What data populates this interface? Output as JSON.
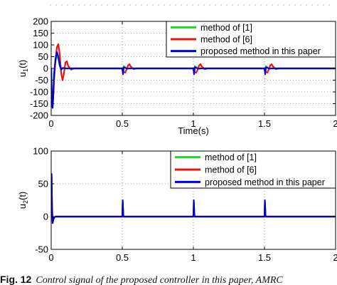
{
  "colors": {
    "green": "#00ee00",
    "red": "#ee1111",
    "blue": "#0000dd"
  },
  "chart_data": [
    {
      "type": "line",
      "ylabel": "u_1(t)",
      "xlabel": "Time(s)",
      "xlim": [
        0,
        2
      ],
      "ylim": [
        -200,
        200
      ],
      "xticks": [
        0,
        0.5,
        1,
        1.5,
        2
      ],
      "xtick_labels": [
        "0",
        "0.5",
        "1",
        "1.5",
        "2"
      ],
      "yticks": [
        -200,
        -150,
        -100,
        -50,
        0,
        50,
        100,
        150,
        200
      ],
      "ytick_labels": [
        "-200",
        "-150",
        "-100",
        "-50",
        "0",
        "50",
        "100",
        "150",
        "200"
      ],
      "grid": true,
      "legend_position": "top-right",
      "series": [
        {
          "name": "method of [1]",
          "color": "#00ee00",
          "x": [
            0,
            0.005,
            0.01,
            0.015,
            0.02,
            0.03,
            0.04,
            0.05,
            0.06,
            0.07,
            0.08,
            0.09,
            0.1,
            0.12,
            0.15,
            0.5,
            0.505,
            0.51,
            0.52,
            0.53,
            0.55,
            1.0,
            1.005,
            1.01,
            1.02,
            1.03,
            1.05,
            1.5,
            1.505,
            1.51,
            1.52,
            1.53,
            1.55,
            2.0
          ],
          "y": [
            0,
            -120,
            -150,
            -100,
            -20,
            30,
            55,
            40,
            10,
            -5,
            0,
            2,
            0,
            0,
            0,
            0,
            -22,
            10,
            5,
            -2,
            0,
            0,
            -22,
            10,
            5,
            -2,
            0,
            0,
            -22,
            10,
            5,
            -2,
            0,
            0
          ]
        },
        {
          "name": "method of [6]",
          "color": "#ee1111",
          "x": [
            0,
            0.005,
            0.01,
            0.015,
            0.02,
            0.03,
            0.04,
            0.05,
            0.06,
            0.07,
            0.08,
            0.09,
            0.1,
            0.11,
            0.12,
            0.14,
            0.16,
            0.5,
            0.51,
            0.52,
            0.53,
            0.54,
            0.55,
            0.56,
            0.58,
            0.6,
            1.0,
            1.01,
            1.02,
            1.03,
            1.04,
            1.05,
            1.06,
            1.08,
            1.1,
            1.5,
            1.51,
            1.52,
            1.53,
            1.54,
            1.55,
            1.56,
            1.58,
            1.6,
            2.0
          ],
          "y": [
            0,
            -140,
            -165,
            -120,
            -50,
            30,
            90,
            103,
            60,
            -20,
            -50,
            -20,
            25,
            30,
            10,
            -5,
            0,
            0,
            -15,
            -18,
            -5,
            12,
            18,
            8,
            -3,
            0,
            0,
            -15,
            -18,
            -5,
            12,
            18,
            8,
            -3,
            0,
            0,
            -15,
            -18,
            -5,
            12,
            18,
            8,
            -3,
            0,
            0
          ]
        },
        {
          "name": "proposed method in this paper",
          "color": "#0000dd",
          "x": [
            0,
            0.005,
            0.01,
            0.015,
            0.02,
            0.03,
            0.04,
            0.05,
            0.06,
            0.07,
            0.08,
            0.1,
            0.12,
            0.15,
            0.5,
            0.505,
            0.51,
            0.52,
            0.53,
            0.55,
            1.0,
            1.005,
            1.01,
            1.02,
            1.03,
            1.05,
            1.5,
            1.505,
            1.51,
            1.52,
            1.53,
            1.55,
            2.0
          ],
          "y": [
            0,
            -150,
            -168,
            -110,
            -30,
            40,
            70,
            50,
            15,
            -5,
            2,
            0,
            0,
            0,
            0,
            -25,
            5,
            3,
            -1,
            0,
            0,
            -25,
            5,
            3,
            -1,
            0,
            0,
            -25,
            5,
            3,
            -1,
            0,
            0
          ]
        }
      ]
    },
    {
      "type": "line",
      "ylabel": "u_2(t)",
      "xlabel": "",
      "xlim": [
        0,
        2
      ],
      "ylim": [
        -50,
        100
      ],
      "xticks": [
        0,
        0.5,
        1,
        1.5,
        2
      ],
      "xtick_labels": [
        "0",
        "0.5",
        "1",
        "1.5",
        "2"
      ],
      "yticks": [
        -50,
        0,
        50,
        100
      ],
      "ytick_labels": [
        "-50",
        "0",
        "50",
        "100"
      ],
      "grid": true,
      "legend_position": "top-right",
      "series": [
        {
          "name": "method of [1]",
          "color": "#00ee00",
          "x": [
            0,
            0.003,
            0.006,
            0.01,
            0.015,
            0.02,
            0.03,
            0.05,
            0.5,
            0.503,
            0.507,
            0.51,
            1.0,
            1.003,
            1.007,
            1.01,
            1.5,
            1.503,
            1.507,
            1.51,
            2.0
          ],
          "y": [
            0,
            55,
            10,
            -8,
            -4,
            -1,
            0,
            0,
            0,
            20,
            2,
            0,
            0,
            20,
            2,
            0,
            0,
            20,
            2,
            0,
            0
          ]
        },
        {
          "name": "method of [6]",
          "color": "#ee1111",
          "x": [
            0,
            0.003,
            0.006,
            0.01,
            0.015,
            0.02,
            0.03,
            0.05,
            0.5,
            0.503,
            0.507,
            0.51,
            1.0,
            1.003,
            1.007,
            1.01,
            1.5,
            1.503,
            1.507,
            1.51,
            2.0
          ],
          "y": [
            0,
            60,
            12,
            -8,
            -4,
            -1,
            0,
            0,
            0,
            22,
            2,
            0,
            0,
            22,
            2,
            0,
            0,
            22,
            2,
            0,
            0
          ]
        },
        {
          "name": "proposed method in this paper",
          "color": "#0000dd",
          "x": [
            0,
            0.003,
            0.006,
            0.01,
            0.015,
            0.02,
            0.03,
            0.05,
            0.5,
            0.503,
            0.507,
            0.51,
            1.0,
            1.003,
            1.007,
            1.01,
            1.5,
            1.503,
            1.507,
            1.51,
            2.0
          ],
          "y": [
            0,
            65,
            15,
            -10,
            -5,
            -2,
            0,
            0,
            0,
            25,
            3,
            0,
            0,
            25,
            3,
            0,
            0,
            25,
            3,
            0,
            0
          ]
        }
      ]
    }
  ],
  "caption": {
    "label": "Fig. 12",
    "text": "Control signal of the proposed controller in this paper, AMRC"
  }
}
